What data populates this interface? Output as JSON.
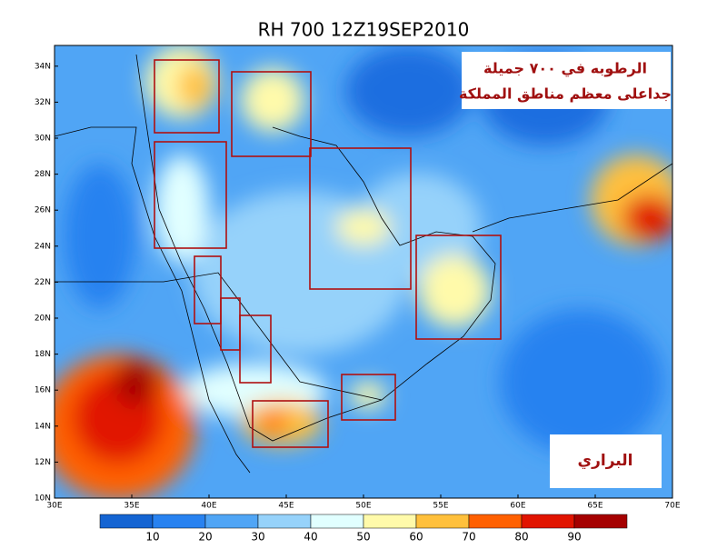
{
  "header": {
    "title": "RH 700 12Z19SEP2010"
  },
  "annotations": {
    "main": [
      "الرطوبه في ٧٠٠ جميلة",
      "جداعلى معظم مناطق المملكة"
    ],
    "region": "البراري"
  },
  "axes": {
    "lat_labels": [
      "10N",
      "12N",
      "14N",
      "16N",
      "18N",
      "20N",
      "22N",
      "24N",
      "26N",
      "28N",
      "30N",
      "32N",
      "34N"
    ],
    "lon_labels": [
      "30E",
      "35E",
      "40E",
      "45E",
      "50E",
      "55E",
      "60E",
      "65E",
      "70E"
    ]
  },
  "colorbar": {
    "labels": [
      10,
      20,
      30,
      40,
      50,
      60,
      70,
      80,
      90
    ],
    "colors": [
      "#1464d2",
      "#2882f0",
      "#50a5f5",
      "#96d2fa",
      "#e1ffff",
      "#fffaaa",
      "#ffc03c",
      "#ff6000",
      "#e11400",
      "#a50000"
    ]
  }
}
